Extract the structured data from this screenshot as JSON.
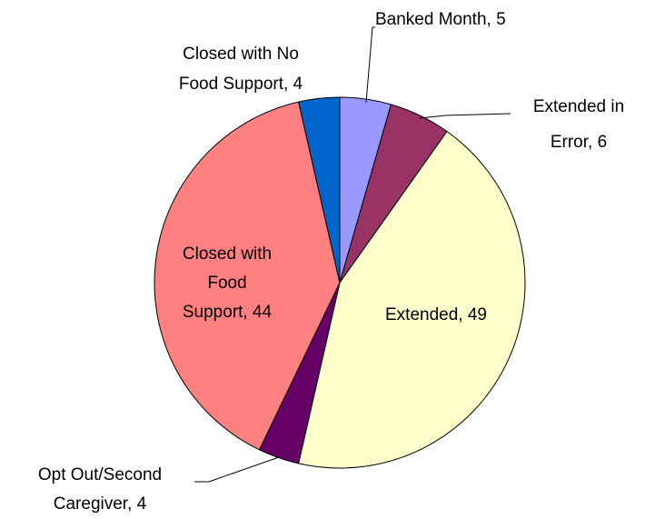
{
  "chart_data": {
    "type": "pie",
    "categories": [
      "Banked Month",
      "Extended in Error",
      "Extended",
      "Opt Out/Second Caregiver",
      "Closed with Food Support",
      "Closed with No Food Support"
    ],
    "values": [
      5,
      6,
      49,
      4,
      44,
      4
    ],
    "value_labels": [
      [
        "Banked Month, 5"
      ],
      [
        "Extended in",
        "Error, 6"
      ],
      [
        "Extended, 49"
      ],
      [
        "Opt Out/Second",
        "Caregiver, 4"
      ],
      [
        "Closed with",
        "Food",
        "Support, 44"
      ],
      [
        "Closed with No",
        "Food Support, 4"
      ]
    ],
    "colors": [
      "#9999ff",
      "#993366",
      "#ffffcc",
      "#660066",
      "#ff8080",
      "#0066cc"
    ]
  }
}
